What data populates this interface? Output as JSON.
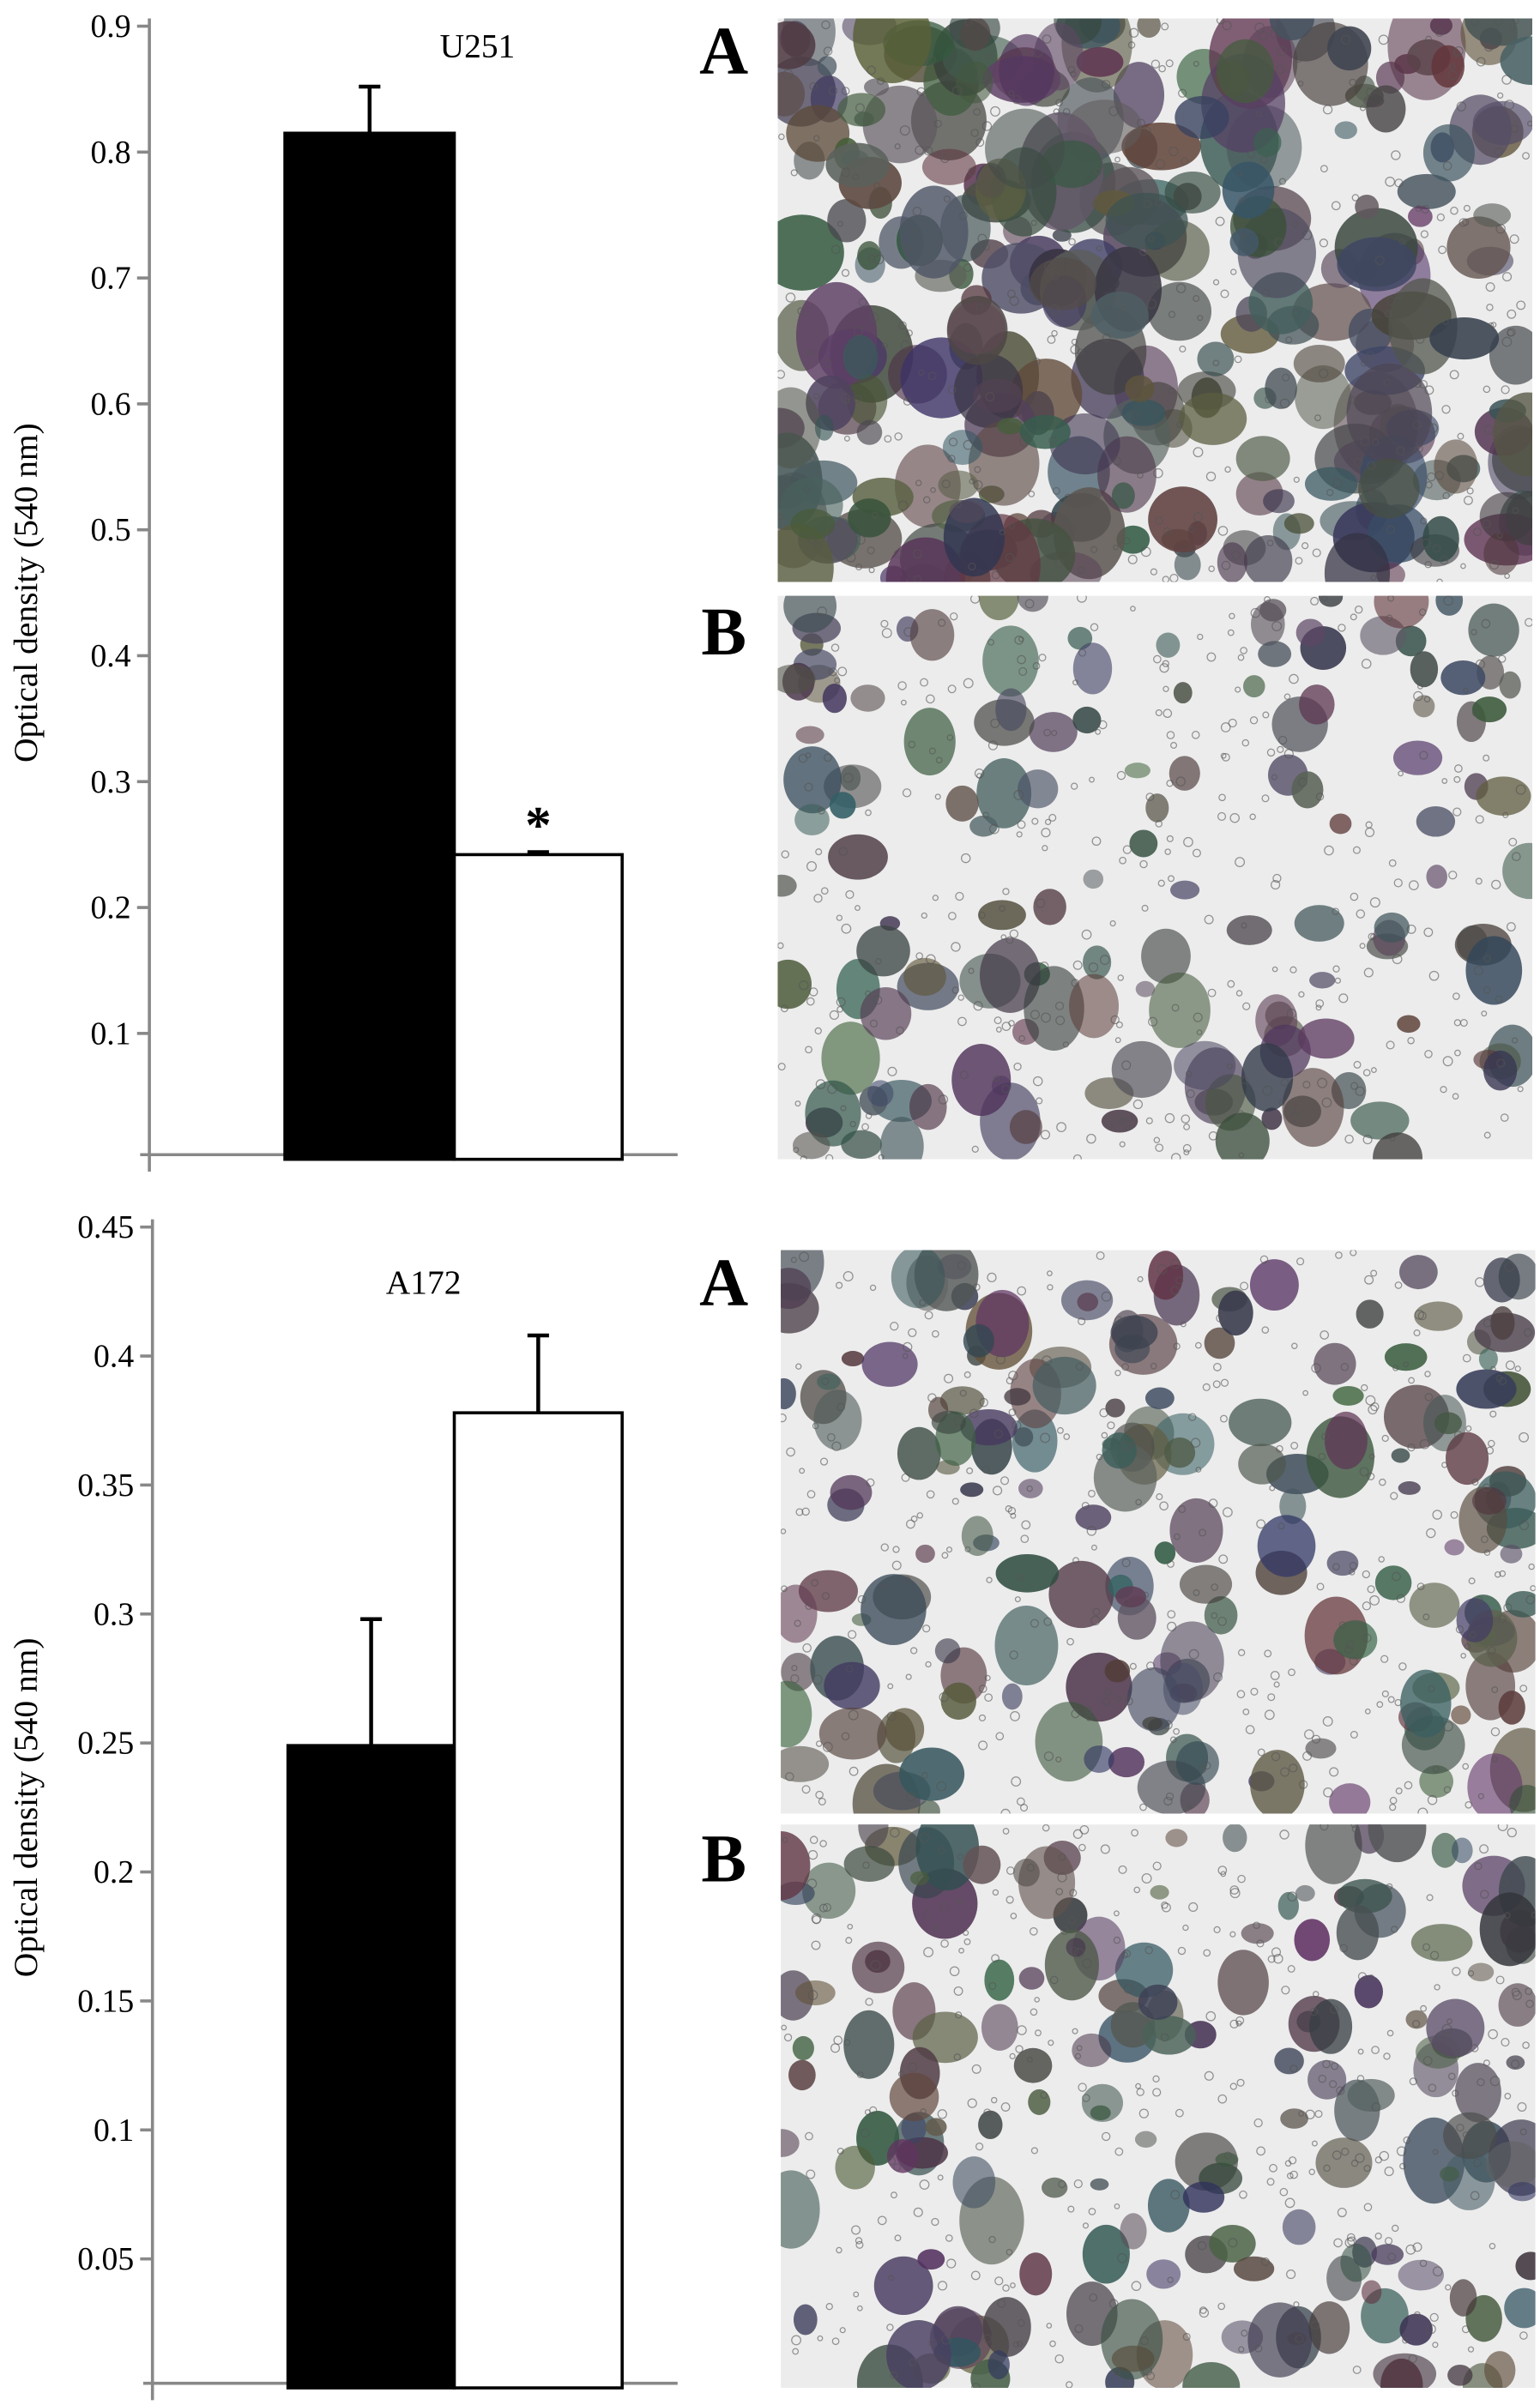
{
  "chart_data": [
    {
      "type": "bar",
      "title": "U251",
      "ylabel": "Optical density (540 nm)",
      "categories": [
        null,
        null
      ],
      "values": [
        0.815,
        0.242
      ],
      "errors": [
        0.037,
        0.002
      ],
      "colors": [
        "#000000",
        "#ffffff"
      ],
      "annotation": "*",
      "ylim": [
        0,
        0.9
      ],
      "yticks": [
        0.1,
        0.2,
        0.3,
        0.4,
        0.5,
        0.6,
        0.7,
        0.8,
        0.9
      ]
    },
    {
      "type": "bar",
      "title": "A172",
      "ylabel": "Optical density (540 nm)",
      "categories": [
        null,
        null
      ],
      "values": [
        0.249,
        0.378
      ],
      "errors": [
        0.049,
        0.03
      ],
      "colors": [
        "#000000",
        "#ffffff"
      ],
      "ylim": [
        0,
        0.45
      ],
      "yticks": [
        0.05,
        0.1,
        0.15,
        0.2,
        0.25,
        0.3,
        0.35,
        0.4,
        0.45
      ]
    }
  ],
  "image_panels": [
    {
      "label": "A"
    },
    {
      "label": "B"
    },
    {
      "label": "A"
    },
    {
      "label": "B"
    }
  ]
}
